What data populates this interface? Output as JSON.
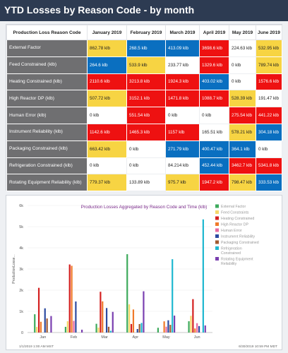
{
  "header": {
    "title": "YTD Losses by Reason Code - by month"
  },
  "table": {
    "columns": [
      "Production Loss Reason Code",
      "January 2019",
      "February 2019",
      "March 2019",
      "April 2019",
      "May 2019",
      "June 2019"
    ],
    "rows": [
      {
        "reason": "External Factor",
        "cells": [
          {
            "text": "862.78 klb",
            "color": "yellow"
          },
          {
            "text": "268.5 klb",
            "color": "blue"
          },
          {
            "text": "413.09 klb",
            "color": "blue"
          },
          {
            "text": "3698.6 klb",
            "color": "red"
          },
          {
            "text": "224.63 klb",
            "color": "white"
          },
          {
            "text": "532.95 klb",
            "color": "yellow"
          }
        ]
      },
      {
        "reason": "Feed Constrained (klb)",
        "cells": [
          {
            "text": "264.6 klb",
            "color": "blue"
          },
          {
            "text": "533.9 klb",
            "color": "yellow"
          },
          {
            "text": "233.77 klb",
            "color": "white"
          },
          {
            "text": "1329.6 klb",
            "color": "red"
          },
          {
            "text": "0 klb",
            "color": "white"
          },
          {
            "text": "789.74 klb",
            "color": "yellow"
          }
        ]
      },
      {
        "reason": "Heating Constrained (klb)",
        "cells": [
          {
            "text": "2110.6 klb",
            "color": "red"
          },
          {
            "text": "3213.8 klb",
            "color": "red"
          },
          {
            "text": "1924.3 klb",
            "color": "red"
          },
          {
            "text": "403.02 klb",
            "color": "blue"
          },
          {
            "text": "0 klb",
            "color": "white"
          },
          {
            "text": "1576.6 klb",
            "color": "red"
          }
        ]
      },
      {
        "reason": "High Reactor DP (klb)",
        "cells": [
          {
            "text": "507.72 klb",
            "color": "yellow"
          },
          {
            "text": "3152.1 klb",
            "color": "red"
          },
          {
            "text": "1471.8 klb",
            "color": "red"
          },
          {
            "text": "1088.7 klb",
            "color": "red"
          },
          {
            "text": "528.39 klb",
            "color": "yellow"
          },
          {
            "text": "191.47 klb",
            "color": "white"
          }
        ]
      },
      {
        "reason": "Human Error (klb)",
        "cells": [
          {
            "text": "0 klb",
            "color": "white"
          },
          {
            "text": "551.54 klb",
            "color": "red"
          },
          {
            "text": "0 klb",
            "color": "white"
          },
          {
            "text": "0 klb",
            "color": "white"
          },
          {
            "text": "275.54 klb",
            "color": "red"
          },
          {
            "text": "441.22 klb",
            "color": "red"
          }
        ]
      },
      {
        "reason": "Instrument Reliability (klb)",
        "cells": [
          {
            "text": "1142.6 klb",
            "color": "red"
          },
          {
            "text": "1465.3 klb",
            "color": "red"
          },
          {
            "text": "1157 klb",
            "color": "red"
          },
          {
            "text": "165.51 klb",
            "color": "white"
          },
          {
            "text": "578.21 klb",
            "color": "yellow"
          },
          {
            "text": "304.18 klb",
            "color": "blue"
          }
        ]
      },
      {
        "reason": "Packaging Constrained (klb)",
        "cells": [
          {
            "text": "663.42 klb",
            "color": "yellow"
          },
          {
            "text": "0 klb",
            "color": "white"
          },
          {
            "text": "271.79 klb",
            "color": "blue"
          },
          {
            "text": "400.47 klb",
            "color": "blue"
          },
          {
            "text": "364.1 klb",
            "color": "blue"
          },
          {
            "text": "0 klb",
            "color": "white"
          }
        ]
      },
      {
        "reason": "Refrigeration Constrained (klb)",
        "cells": [
          {
            "text": "0 klb",
            "color": "white"
          },
          {
            "text": "0 klb",
            "color": "white"
          },
          {
            "text": "84.214 klb",
            "color": "white"
          },
          {
            "text": "452.44 klb",
            "color": "blue"
          },
          {
            "text": "3462.7 klb",
            "color": "red"
          },
          {
            "text": "5341.8 klb",
            "color": "red"
          }
        ]
      },
      {
        "reason": "Rotating Equipment Reliability (klb)",
        "cells": [
          {
            "text": "779.37 klb",
            "color": "yellow"
          },
          {
            "text": "133.89 klb",
            "color": "white"
          },
          {
            "text": "975.7 klb",
            "color": "yellow"
          },
          {
            "text": "1947.2 klb",
            "color": "red"
          },
          {
            "text": "798.47 klb",
            "color": "yellow"
          },
          {
            "text": "333.53 klb",
            "color": "blue"
          }
        ]
      }
    ]
  },
  "chart_data": {
    "type": "bar",
    "title": "Production Losses Aggregated by Reason Code and Time (klb)",
    "ylabel": "ProductionLosse...",
    "ylim": [
      0,
      6000
    ],
    "yticks": [
      "0",
      "1k",
      "2k",
      "3k",
      "4k",
      "5k",
      "6k"
    ],
    "categories": [
      "Jan",
      "Feb",
      "Mar",
      "Apr",
      "May",
      "Jun"
    ],
    "start_label": "1/1/2019 1:00 AM MST",
    "end_label": "6/30/2019 10:59 PM MDT",
    "legend_position": "right",
    "series": [
      {
        "name": "External Factor",
        "color": "#3daa5c",
        "values": [
          862.78,
          268.5,
          413.09,
          3698.6,
          224.63,
          532.95
        ]
      },
      {
        "name": "Feed Constraints",
        "color": "#f5d86a",
        "values": [
          264.6,
          533.9,
          233.77,
          1329.6,
          0,
          789.74
        ]
      },
      {
        "name": "Heating Constrained",
        "color": "#d42020",
        "values": [
          2110.6,
          3213.8,
          1924.3,
          403.02,
          0,
          1576.6
        ]
      },
      {
        "name": "High Reactor DP",
        "color": "#f07a2a",
        "values": [
          507.72,
          3152.1,
          1471.8,
          1088.7,
          528.39,
          191.47
        ]
      },
      {
        "name": "Human Error",
        "color": "#e86aa0",
        "values": [
          0,
          551.54,
          0,
          0,
          275.54,
          441.22
        ]
      },
      {
        "name": "Instrument Reliability",
        "color": "#2c4aa0",
        "values": [
          1142.6,
          1465.3,
          1157,
          165.51,
          578.21,
          304.18
        ]
      },
      {
        "name": "Packaging Constrained",
        "color": "#a05a30",
        "values": [
          663.42,
          0,
          271.79,
          400.47,
          364.1,
          0
        ]
      },
      {
        "name": "Refrigeration Constrained",
        "color": "#1fb8d0",
        "values": [
          0,
          0,
          84.214,
          452.44,
          3462.7,
          5341.8
        ]
      },
      {
        "name": "Rotating Equipment Reliability",
        "color": "#7a3fb0",
        "values": [
          779.37,
          133.89,
          975.7,
          1947.2,
          798.47,
          333.53
        ]
      }
    ]
  }
}
